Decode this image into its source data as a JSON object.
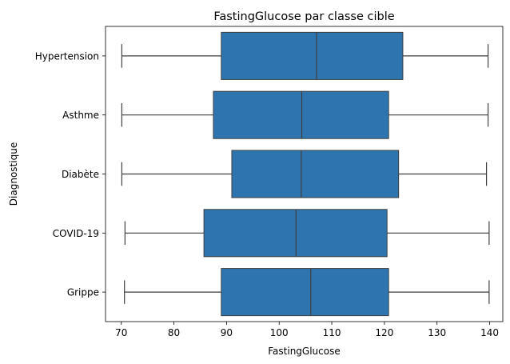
{
  "chart_data": {
    "type": "boxplot",
    "title": "FastingGlucose par classe cible",
    "xlabel": "FastingGlucose",
    "ylabel": "Diagnostique",
    "xlim": [
      67,
      142.5
    ],
    "xticks": [
      70,
      80,
      90,
      100,
      110,
      120,
      130,
      140
    ],
    "orientation": "horizontal",
    "grid": false,
    "color": "#2e75b0",
    "edge_color": "#3f3f3f",
    "series": [
      {
        "category": "Hypertension",
        "min": 70.1,
        "q1": 89.0,
        "median": 107.1,
        "q3": 123.5,
        "max": 139.7
      },
      {
        "category": "Asthme",
        "min": 70.1,
        "q1": 87.5,
        "median": 104.3,
        "q3": 120.8,
        "max": 139.7
      },
      {
        "category": "Diabète",
        "min": 70.1,
        "q1": 91.0,
        "median": 104.2,
        "q3": 122.7,
        "max": 139.4
      },
      {
        "category": "COVID-19",
        "min": 70.7,
        "q1": 85.7,
        "median": 103.2,
        "q3": 120.5,
        "max": 139.9
      },
      {
        "category": "Grippe",
        "min": 70.6,
        "q1": 89.0,
        "median": 106.0,
        "q3": 120.8,
        "max": 139.9
      }
    ]
  }
}
